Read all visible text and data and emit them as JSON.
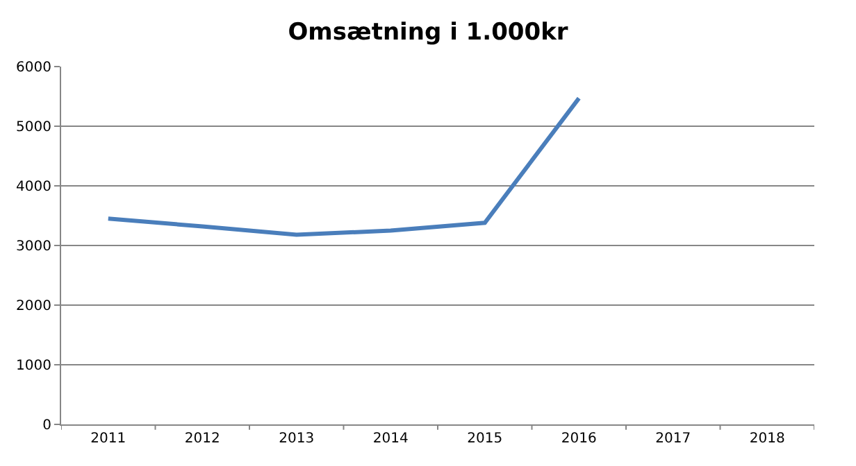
{
  "chart_data": {
    "type": "line",
    "title": "Omsætning i 1.000kr",
    "categories": [
      "2011",
      "2012",
      "2013",
      "2014",
      "2015",
      "2016",
      "2017",
      "2018"
    ],
    "series": [
      {
        "color": "#4a7ebb",
        "values": [
          3450,
          3320,
          3180,
          3250,
          3380,
          5470,
          null,
          null
        ]
      }
    ],
    "ylim": [
      0,
      6000
    ],
    "yticks": [
      0,
      1000,
      2000,
      3000,
      4000,
      5000,
      6000
    ],
    "grid": "y",
    "marker": "none",
    "line_style": "solid"
  }
}
